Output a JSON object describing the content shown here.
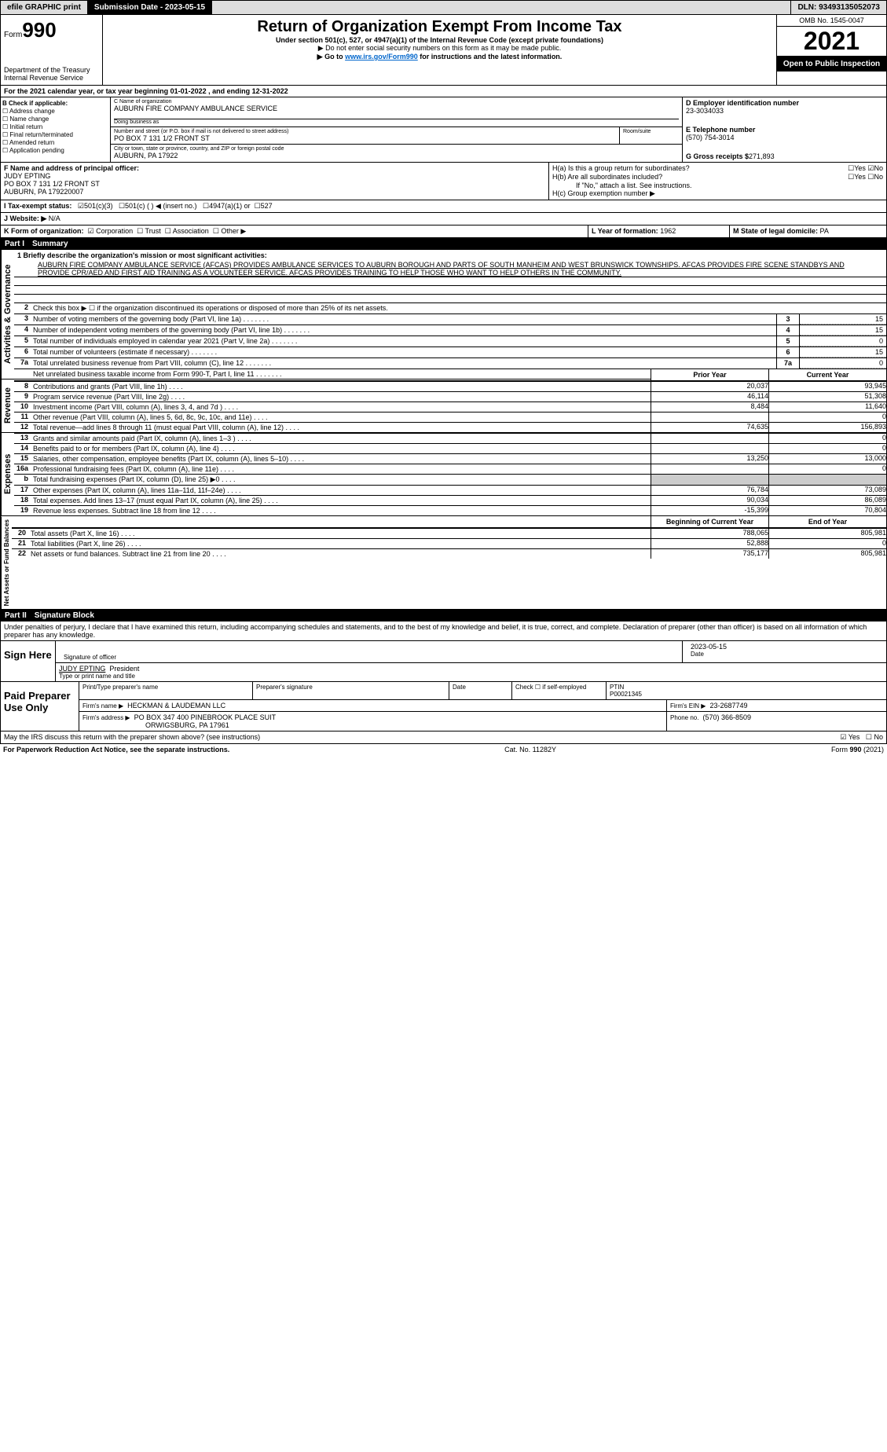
{
  "topbar": {
    "efile": "efile GRAPHIC print",
    "submission": "Submission Date - 2023-05-15",
    "dln_label": "DLN:",
    "dln": "93493135052073"
  },
  "header": {
    "form_word": "Form",
    "form_num": "990",
    "title": "Return of Organization Exempt From Income Tax",
    "subtitle": "Under section 501(c), 527, or 4947(a)(1) of the Internal Revenue Code (except private foundations)",
    "caution": "▶ Do not enter social security numbers on this form as it may be made public.",
    "goto_pre": "▶ Go to ",
    "goto_link": "www.irs.gov/Form990",
    "goto_post": " for instructions and the latest information.",
    "dept": "Department of the Treasury",
    "irs": "Internal Revenue Service",
    "omb": "OMB No. 1545-0047",
    "year": "2021",
    "open": "Open to Public Inspection"
  },
  "secA": {
    "line": "For the 2021 calendar year, or tax year beginning 01-01-2022    , and ending 12-31-2022"
  },
  "secB": {
    "header": "B Check if applicable:",
    "opts": [
      "Address change",
      "Name change",
      "Initial return",
      "Final return/terminated",
      "Amended return",
      "Application pending"
    ]
  },
  "secC": {
    "name_label": "C Name of organization",
    "name": "AUBURN FIRE COMPANY AMBULANCE SERVICE",
    "dba_label": "Doing business as",
    "dba": "",
    "addr_label": "Number and street (or P.O. box if mail is not delivered to street address)",
    "room_label": "Room/suite",
    "addr": "PO BOX 7 131 1/2 FRONT ST",
    "city_label": "City or town, state or province, country, and ZIP or foreign postal code",
    "city": "AUBURN, PA  17922"
  },
  "secD": {
    "label": "D Employer identification number",
    "ein": "23-3034033"
  },
  "secE": {
    "label": "E Telephone number",
    "phone": "(570) 754-3014"
  },
  "secG": {
    "label": "G Gross receipts $",
    "val": "271,893"
  },
  "secF": {
    "label": "F  Name and address of principal officer:",
    "name": "JUDY EPTING",
    "addr1": "PO BOX 7 131 1/2 FRONT ST",
    "addr2": "AUBURN, PA  179220007"
  },
  "secH": {
    "a": "H(a)  Is this a group return for subordinates?",
    "b": "H(b)  Are all subordinates included?",
    "b_note": "If \"No,\" attach a list. See instructions.",
    "c": "H(c)  Group exemption number ▶",
    "yes": "Yes",
    "no": "No"
  },
  "secI": {
    "label": "I  Tax-exempt status:",
    "o1": "501(c)(3)",
    "o2": "501(c) (  ) ◀ (insert no.)",
    "o3": "4947(a)(1) or",
    "o4": "527"
  },
  "secJ": {
    "label": "J  Website: ▶",
    "val": "N/A"
  },
  "secK": {
    "label": "K Form of organization:",
    "o1": "Corporation",
    "o2": "Trust",
    "o3": "Association",
    "o4": "Other ▶"
  },
  "secL": {
    "label": "L Year of formation:",
    "val": "1962"
  },
  "secM": {
    "label": "M State of legal domicile:",
    "val": "PA"
  },
  "part1": {
    "title": "Part I",
    "name": "Summary",
    "mission_label": "1 Briefly describe the organization's mission or most significant activities:",
    "mission": "AUBURN FIRE COMPANY AMBULANCE SERVICE (AFCAS) PROVIDES AMBULANCE SERVICES TO AUBURN BOROUGH AND PARTS OF SOUTH MANHEIM AND WEST BRUNSWICK TOWNSHIPS. AFCAS PROVIDES FIRE SCENE STANDBYS AND PROVIDE CPR/AED AND FIRST AID TRAINING AS A VOLUNTEER SERVICE. AFCAS PROVIDES TRAINING TO HELP THOSE WHO WANT TO HELP OTHERS IN THE COMMUNITY.",
    "l2": "Check this box ▶ ☐  if the organization discontinued its operations or disposed of more than 25% of its net assets.",
    "lines_single": [
      {
        "n": "3",
        "t": "Number of voting members of the governing body (Part VI, line 1a)",
        "box": "3",
        "v": "15"
      },
      {
        "n": "4",
        "t": "Number of independent voting members of the governing body (Part VI, line 1b)",
        "box": "4",
        "v": "15"
      },
      {
        "n": "5",
        "t": "Total number of individuals employed in calendar year 2021 (Part V, line 2a)",
        "box": "5",
        "v": "0"
      },
      {
        "n": "6",
        "t": "Total number of volunteers (estimate if necessary)",
        "box": "6",
        "v": "15"
      },
      {
        "n": "7a",
        "t": "Total unrelated business revenue from Part VIII, column (C), line 12",
        "box": "7a",
        "v": "0"
      },
      {
        "n": "",
        "t": "Net unrelated business taxable income from Form 990-T, Part I, line 11",
        "box": "7b",
        "v": ""
      }
    ],
    "col_prior": "Prior Year",
    "col_current": "Current Year",
    "revenue": [
      {
        "n": "8",
        "t": "Contributions and grants (Part VIII, line 1h)",
        "p": "20,037",
        "c": "93,945"
      },
      {
        "n": "9",
        "t": "Program service revenue (Part VIII, line 2g)",
        "p": "46,114",
        "c": "51,308"
      },
      {
        "n": "10",
        "t": "Investment income (Part VIII, column (A), lines 3, 4, and 7d )",
        "p": "8,484",
        "c": "11,640"
      },
      {
        "n": "11",
        "t": "Other revenue (Part VIII, column (A), lines 5, 6d, 8c, 9c, 10c, and 11e)",
        "p": "",
        "c": "0"
      },
      {
        "n": "12",
        "t": "Total revenue—add lines 8 through 11 (must equal Part VIII, column (A), line 12)",
        "p": "74,635",
        "c": "156,893"
      }
    ],
    "expenses": [
      {
        "n": "13",
        "t": "Grants and similar amounts paid (Part IX, column (A), lines 1–3 )",
        "p": "",
        "c": "0"
      },
      {
        "n": "14",
        "t": "Benefits paid to or for members (Part IX, column (A), line 4)",
        "p": "",
        "c": "0"
      },
      {
        "n": "15",
        "t": "Salaries, other compensation, employee benefits (Part IX, column (A), lines 5–10)",
        "p": "13,250",
        "c": "13,000"
      },
      {
        "n": "16a",
        "t": "Professional fundraising fees (Part IX, column (A), line 11e)",
        "p": "",
        "c": "0"
      },
      {
        "n": "b",
        "t": "Total fundraising expenses (Part IX, column (D), line 25) ▶0",
        "p": "SHADE",
        "c": "SHADE"
      },
      {
        "n": "17",
        "t": "Other expenses (Part IX, column (A), lines 11a–11d, 11f–24e)",
        "p": "76,784",
        "c": "73,089"
      },
      {
        "n": "18",
        "t": "Total expenses. Add lines 13–17 (must equal Part IX, column (A), line 25)",
        "p": "90,034",
        "c": "86,089"
      },
      {
        "n": "19",
        "t": "Revenue less expenses. Subtract line 18 from line 12",
        "p": "-15,399",
        "c": "70,804"
      }
    ],
    "col_begin": "Beginning of Current Year",
    "col_end": "End of Year",
    "netassets": [
      {
        "n": "20",
        "t": "Total assets (Part X, line 16)",
        "p": "788,065",
        "c": "805,981"
      },
      {
        "n": "21",
        "t": "Total liabilities (Part X, line 26)",
        "p": "52,888",
        "c": "0"
      },
      {
        "n": "22",
        "t": "Net assets or fund balances. Subtract line 21 from line 20",
        "p": "735,177",
        "c": "805,981"
      }
    ],
    "vlabels": {
      "gov": "Activities & Governance",
      "rev": "Revenue",
      "exp": "Expenses",
      "net": "Net Assets or Fund Balances"
    }
  },
  "part2": {
    "title": "Part II",
    "name": "Signature Block",
    "decl": "Under penalties of perjury, I declare that I have examined this return, including accompanying schedules and statements, and to the best of my knowledge and belief, it is true, correct, and complete. Declaration of preparer (other than officer) is based on all information of which preparer has any knowledge.",
    "sign_here": "Sign Here",
    "sig_officer": "Signature of officer",
    "date": "Date",
    "sig_date": "2023-05-15",
    "officer_name": "JUDY EPTING",
    "officer_title": "President",
    "type_name": "Type or print name and title",
    "paid": "Paid Preparer Use Only",
    "prep_name_label": "Print/Type preparer's name",
    "prep_sig_label": "Preparer's signature",
    "date_label": "Date",
    "check_self": "Check ☐ if self-employed",
    "ptin_label": "PTIN",
    "ptin": "P00021345",
    "firm_name_label": "Firm's name    ▶",
    "firm_name": "HECKMAN & LAUDEMAN LLC",
    "firm_ein_label": "Firm's EIN ▶",
    "firm_ein": "23-2687749",
    "firm_addr_label": "Firm's address ▶",
    "firm_addr1": "PO BOX 347 400 PINEBROOK PLACE SUIT",
    "firm_addr2": "ORWIGSBURG, PA  17961",
    "phone_label": "Phone no.",
    "phone": "(570) 366-8509",
    "discuss": "May the IRS discuss this return with the preparer shown above? (see instructions)",
    "yes": "Yes",
    "no": "No"
  },
  "footer": {
    "pra": "For Paperwork Reduction Act Notice, see the separate instructions.",
    "cat": "Cat. No. 11282Y",
    "form": "Form 990 (2021)"
  }
}
